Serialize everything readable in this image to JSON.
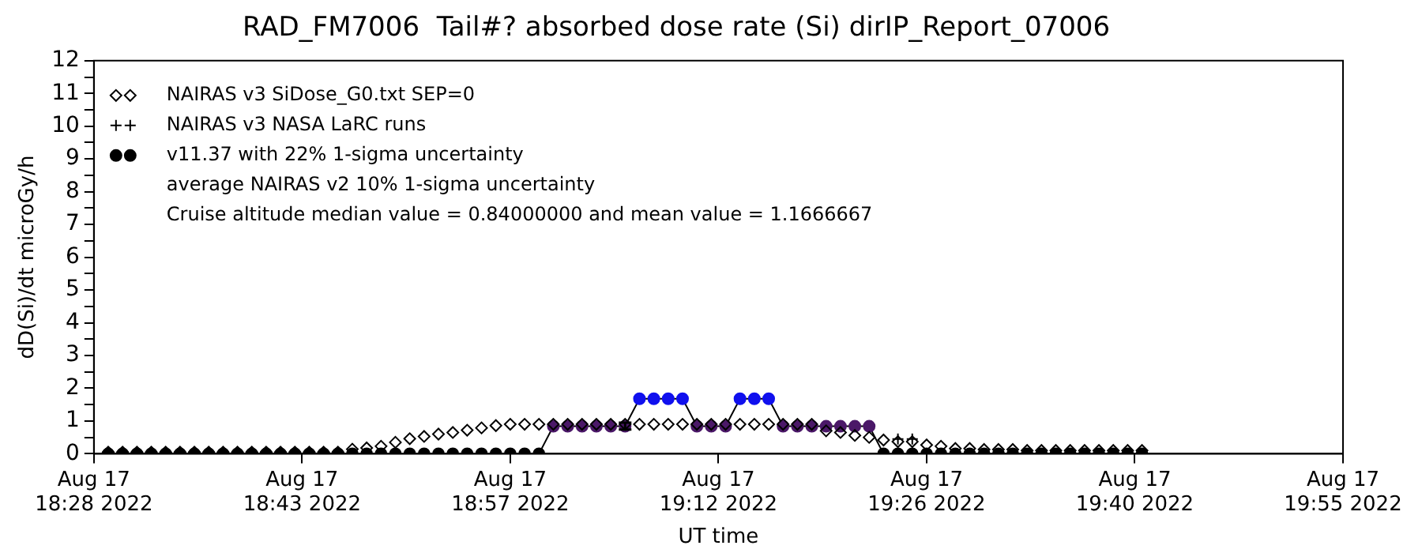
{
  "chart_data": {
    "type": "scatter",
    "title": "RAD_FM7006  Tail#? absorbed dose rate (Si) dirIP_Report_07006",
    "xlabel": "UT time",
    "ylabel": "dD(Si)/dt microGy/h",
    "annotations": [
      "average NAIRAS v2 10% 1-sigma uncertainty",
      "Cruise altitude median value = 0.84000000 and mean value = 1.1666667"
    ],
    "x": [
      "2022-08-17T18:29",
      "2022-08-17T18:30",
      "2022-08-17T18:31",
      "2022-08-17T18:32",
      "2022-08-17T18:33",
      "2022-08-17T18:34",
      "2022-08-17T18:35",
      "2022-08-17T18:36",
      "2022-08-17T18:37",
      "2022-08-17T18:38",
      "2022-08-17T18:39",
      "2022-08-17T18:40",
      "2022-08-17T18:41",
      "2022-08-17T18:42",
      "2022-08-17T18:43",
      "2022-08-17T18:44",
      "2022-08-17T18:45",
      "2022-08-17T18:46",
      "2022-08-17T18:47",
      "2022-08-17T18:48",
      "2022-08-17T18:49",
      "2022-08-17T18:50",
      "2022-08-17T18:51",
      "2022-08-17T18:52",
      "2022-08-17T18:53",
      "2022-08-17T18:54",
      "2022-08-17T18:55",
      "2022-08-17T18:56",
      "2022-08-17T18:57",
      "2022-08-17T18:58",
      "2022-08-17T18:59",
      "2022-08-17T19:00",
      "2022-08-17T19:01",
      "2022-08-17T19:02",
      "2022-08-17T19:03",
      "2022-08-17T19:04",
      "2022-08-17T19:05",
      "2022-08-17T19:06",
      "2022-08-17T19:07",
      "2022-08-17T19:08",
      "2022-08-17T19:09",
      "2022-08-17T19:10",
      "2022-08-17T19:11",
      "2022-08-17T19:12",
      "2022-08-17T19:13",
      "2022-08-17T19:14",
      "2022-08-17T19:15",
      "2022-08-17T19:16",
      "2022-08-17T19:17",
      "2022-08-17T19:18",
      "2022-08-17T19:19",
      "2022-08-17T19:20",
      "2022-08-17T19:21",
      "2022-08-17T19:22",
      "2022-08-17T19:23",
      "2022-08-17T19:24",
      "2022-08-17T19:25",
      "2022-08-17T19:26",
      "2022-08-17T19:27",
      "2022-08-17T19:28",
      "2022-08-17T19:29",
      "2022-08-17T19:30",
      "2022-08-17T19:31",
      "2022-08-17T19:32",
      "2022-08-17T19:33",
      "2022-08-17T19:34",
      "2022-08-17T19:35",
      "2022-08-17T19:36",
      "2022-08-17T19:37",
      "2022-08-17T19:38",
      "2022-08-17T19:39",
      "2022-08-17T19:40",
      "2022-08-17T19:41"
    ],
    "series": [
      {
        "name": "NAIRAS v3 SiDose_G0.txt SEP=0",
        "type": "scatter",
        "marker": "diamond",
        "color": "#000000",
        "values": [
          0.05,
          0.05,
          0.05,
          0.05,
          0.05,
          0.05,
          0.05,
          0.05,
          0.05,
          0.05,
          0.05,
          0.05,
          0.05,
          0.05,
          0.05,
          0.05,
          0.05,
          0.14,
          0.18,
          0.23,
          0.35,
          0.46,
          0.53,
          0.6,
          0.65,
          0.72,
          0.79,
          0.86,
          0.9,
          0.9,
          0.9,
          0.9,
          0.9,
          0.9,
          0.9,
          0.9,
          0.9,
          0.9,
          0.9,
          0.9,
          0.9,
          0.9,
          0.9,
          0.9,
          0.9,
          0.9,
          0.9,
          0.9,
          0.9,
          0.9,
          0.7,
          0.65,
          0.56,
          0.5,
          0.42,
          0.37,
          0.37,
          0.27,
          0.23,
          0.16,
          0.16,
          0.13,
          0.13,
          0.13,
          0.1,
          0.1,
          0.1,
          0.1,
          0.1,
          0.1,
          0.1,
          0.1,
          0.1
        ]
      },
      {
        "name": "NAIRAS v3 NASA LaRC runs",
        "type": "scatter",
        "marker": "cross",
        "color": "#000000",
        "x": [
          "2022-08-17T19:24",
          "2022-08-17T19:25"
        ],
        "values": [
          0.45,
          0.45
        ]
      },
      {
        "name": "v11.37 with 22% 1-sigma uncertainty",
        "type": "line",
        "marker": "circle",
        "color": "#000000",
        "values": [
          0,
          0,
          0,
          0,
          0,
          0,
          0,
          0,
          0,
          0,
          0,
          0,
          0,
          0,
          0,
          0,
          0,
          0,
          0,
          0,
          0,
          0,
          0,
          0,
          0,
          0,
          0,
          0,
          0,
          0,
          0,
          0.84,
          0.84,
          0.84,
          0.84,
          0.84,
          0.84,
          1.68,
          1.68,
          1.68,
          1.68,
          0.84,
          0.84,
          0.84,
          1.68,
          1.68,
          1.68,
          0.84,
          0.84,
          0.84,
          0.84,
          0.84,
          0.84,
          0.84,
          0,
          0,
          0,
          0,
          0,
          0,
          0,
          0,
          0,
          0,
          0,
          0,
          0,
          0,
          0,
          0,
          0,
          0,
          0
        ],
        "colors": [
          "#000000",
          "#000000",
          "#000000",
          "#000000",
          "#000000",
          "#000000",
          "#000000",
          "#000000",
          "#000000",
          "#000000",
          "#000000",
          "#000000",
          "#000000",
          "#000000",
          "#000000",
          "#000000",
          "#000000",
          "#000000",
          "#000000",
          "#000000",
          "#000000",
          "#000000",
          "#000000",
          "#000000",
          "#000000",
          "#000000",
          "#000000",
          "#000000",
          "#000000",
          "#000000",
          "#000000",
          "#4b1868",
          "#4b1868",
          "#4b1868",
          "#4b1868",
          "#4b1868",
          "#4b1868",
          "#1010ee",
          "#1010ee",
          "#1010ee",
          "#1010ee",
          "#4b1868",
          "#4b1868",
          "#4b1868",
          "#1010ee",
          "#1010ee",
          "#1010ee",
          "#4b1868",
          "#4b1868",
          "#4b1868",
          "#4b1868",
          "#4b1868",
          "#4b1868",
          "#4b1868",
          "#000000",
          "#000000",
          "#000000",
          "#000000",
          "#000000",
          "#000000",
          "#000000",
          "#000000",
          "#000000",
          "#000000",
          "#000000",
          "#000000",
          "#000000",
          "#000000",
          "#000000",
          "#000000",
          "#000000",
          "#000000",
          "#000000"
        ],
        "errors": [
          null,
          null,
          null,
          null,
          null,
          null,
          null,
          null,
          null,
          null,
          null,
          null,
          null,
          null,
          null,
          null,
          null,
          null,
          null,
          null,
          null,
          null,
          null,
          null,
          null,
          null,
          null,
          null,
          null,
          null,
          null,
          null,
          null,
          null,
          null,
          null,
          [
            0.74,
            0.95
          ],
          null,
          null,
          null,
          null,
          null,
          null,
          null,
          null,
          null,
          null,
          null,
          null,
          null,
          null,
          null,
          null,
          null,
          null,
          null,
          null,
          null,
          null,
          null,
          null,
          null,
          null,
          null,
          null,
          null,
          null,
          null,
          null,
          null,
          null,
          null,
          null
        ]
      }
    ],
    "xlim": [
      "2022-08-17T18:28",
      "2022-08-17T19:55"
    ],
    "xticks": [
      {
        "value": "2022-08-17T18:28",
        "label": "Aug 17\n18:28 2022"
      },
      {
        "value": "2022-08-17T18:42:30",
        "label": "Aug 17\n18:43 2022"
      },
      {
        "value": "2022-08-17T18:57",
        "label": "Aug 17\n18:57 2022"
      },
      {
        "value": "2022-08-17T19:11:30",
        "label": "Aug 17\n19:12 2022"
      },
      {
        "value": "2022-08-17T19:26",
        "label": "Aug 17\n19:26 2022"
      },
      {
        "value": "2022-08-17T19:40:30",
        "label": "Aug 17\n19:40 2022"
      },
      {
        "value": "2022-08-17T19:55",
        "label": "Aug 17\n19:55 2022"
      }
    ],
    "ylim": [
      0,
      12
    ],
    "yticks": [
      0,
      {
        "value": 0.5,
        "label": null
      },
      1,
      {
        "value": 1.5,
        "label": null
      },
      2,
      {
        "value": 2.5,
        "label": null
      },
      3,
      {
        "value": 3.5,
        "label": null
      },
      4,
      {
        "value": 4.5,
        "label": null
      },
      5,
      {
        "value": 5.5,
        "label": null
      },
      6,
      {
        "value": 6.5,
        "label": null
      },
      7,
      {
        "value": 7.5,
        "label": null
      },
      8,
      {
        "value": 8.5,
        "label": null
      },
      9,
      {
        "value": 9.5,
        "label": null
      },
      10,
      {
        "value": 10.5,
        "label": null
      },
      11,
      {
        "value": 11.5,
        "label": null
      },
      12
    ],
    "grid": false,
    "legend": "top left"
  }
}
